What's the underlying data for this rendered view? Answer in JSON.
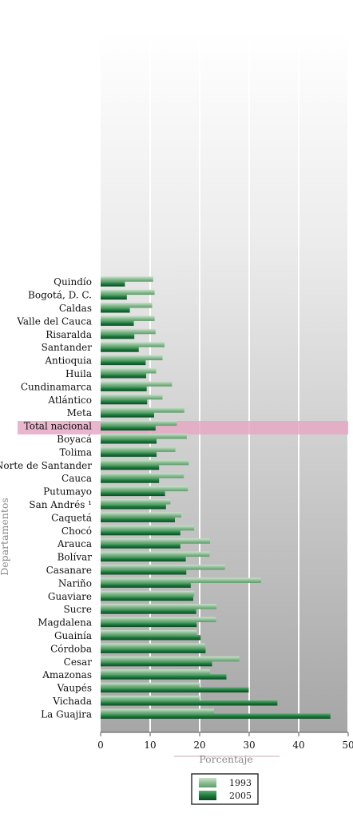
{
  "chart_data": {
    "type": "bar",
    "orientation": "horizontal",
    "ylabel": "Departamentos",
    "xlabel": "Porcentaje",
    "xlim": [
      0,
      50
    ],
    "xticks": [
      0,
      10,
      20,
      30,
      40,
      50
    ],
    "grid": true,
    "legend_position": "bottom",
    "highlight_category": "Total nacional",
    "categories": [
      "Quindío",
      "Bogotá, D. C.",
      "Caldas",
      "Valle del Cauca",
      "Risaralda",
      "Santander",
      "Antioquia",
      "Huila",
      "Cundinamarca",
      "Atlántico",
      "Meta",
      "Total nacional",
      "Boyacá",
      "Tolima",
      "Norte de Santander",
      "Cauca",
      "Putumayo",
      "San Andrés ¹",
      "Caquetá",
      "Chocó",
      "Arauca",
      "Bolívar",
      "Casanare",
      "Nariño",
      "Guaviare",
      "Sucre",
      "Magdalena",
      "Guainía",
      "Córdoba",
      "Cesar",
      "Amazonas",
      "Vaupés",
      "Vichada",
      "La Guajira"
    ],
    "series": [
      {
        "name": "1993",
        "color": "#8fbf97",
        "values": [
          10.6,
          10.9,
          10.4,
          10.9,
          11.1,
          12.9,
          12.5,
          11.2,
          14.4,
          12.5,
          16.9,
          15.4,
          17.4,
          15.1,
          17.8,
          16.8,
          17.6,
          14.1,
          16.3,
          18.9,
          22.1,
          22.0,
          25.1,
          32.4,
          18.9,
          23.4,
          23.3,
          19.4,
          21.1,
          28.0,
          22.1,
          20.0,
          20.0,
          22.9
        ]
      },
      {
        "name": "2005",
        "color": "#1f7a3f",
        "values": [
          4.9,
          5.3,
          5.9,
          6.7,
          6.8,
          7.7,
          9.1,
          9.2,
          9.3,
          9.4,
          10.8,
          11.1,
          11.3,
          11.3,
          11.8,
          11.8,
          13.0,
          13.2,
          15.0,
          16.1,
          16.1,
          17.2,
          17.3,
          18.2,
          18.7,
          19.3,
          19.4,
          20.2,
          21.2,
          22.5,
          25.4,
          29.9,
          35.7,
          46.4
        ]
      }
    ]
  }
}
